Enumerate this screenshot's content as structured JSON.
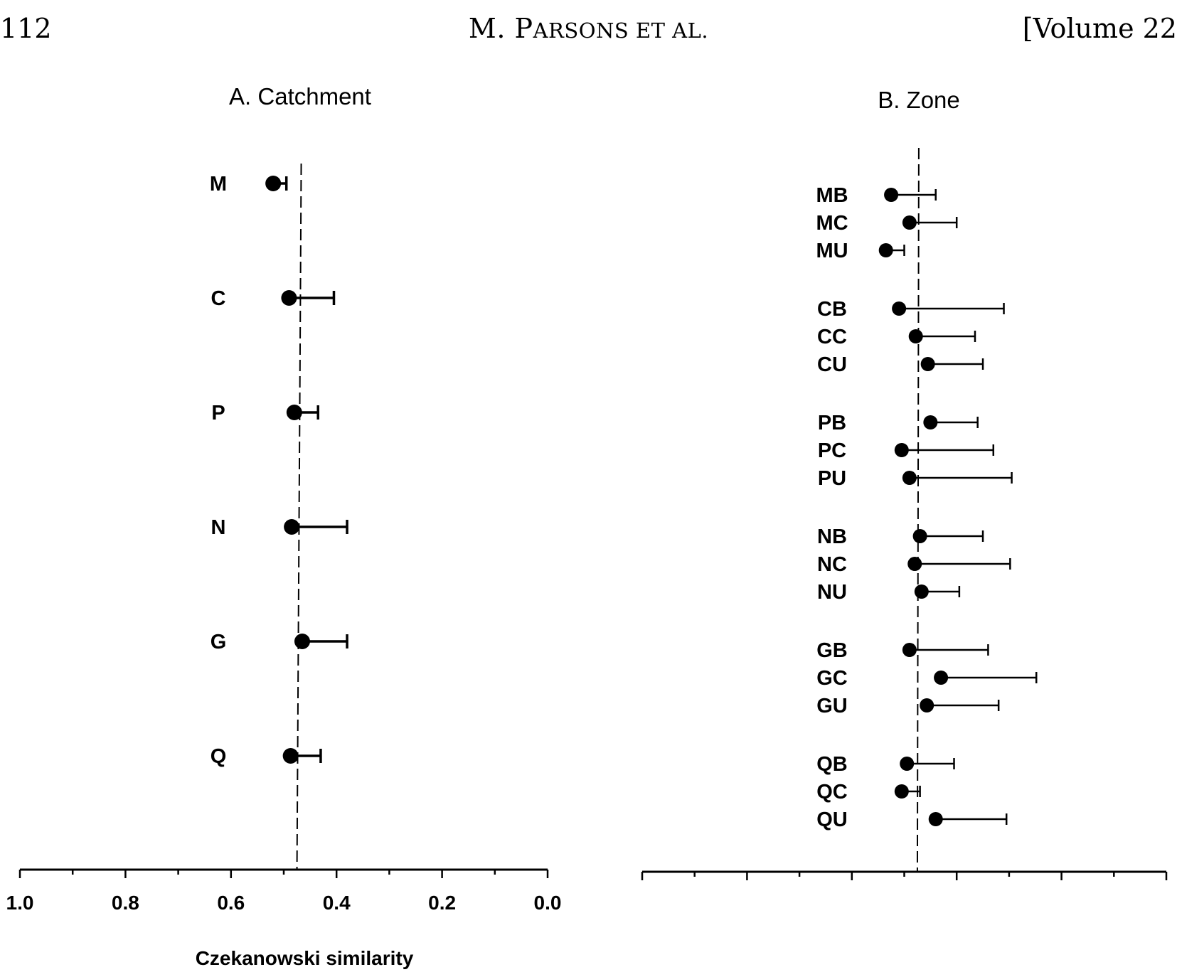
{
  "header": {
    "page_number": "112",
    "author_initial": "M. P",
    "author_rest": "ARSONS ET AL.",
    "volume": "[Volume 22"
  },
  "chart_data": [
    {
      "type": "dot-errorbar",
      "title": "A. Catchment",
      "xlabel": "Czekanowski similarity",
      "xlim": [
        1.0,
        0.0
      ],
      "x_reversed": true,
      "xticks": [
        "1.0",
        "0.8",
        "0.6",
        "0.4",
        "0.2",
        "0.0"
      ],
      "reference_line": 0.475,
      "categories": [
        "M",
        "C",
        "P",
        "N",
        "G",
        "Q"
      ],
      "values": [
        0.52,
        0.49,
        0.48,
        0.485,
        0.465,
        0.487
      ],
      "error_to": [
        0.495,
        0.405,
        0.435,
        0.38,
        0.38,
        0.43
      ]
    },
    {
      "type": "dot-errorbar",
      "title": "B. Zone",
      "xlabel": "",
      "xlim": [
        1.0,
        0.0
      ],
      "x_reversed": true,
      "xticks": [
        "",
        "",
        "",
        "",
        "",
        ""
      ],
      "reference_line": 0.475,
      "groups": [
        {
          "categories": [
            "MB",
            "MC",
            "MU"
          ],
          "values": [
            0.525,
            0.49,
            0.535
          ],
          "error_to": [
            0.44,
            0.4,
            0.5
          ]
        },
        {
          "categories": [
            "CB",
            "CC",
            "CU"
          ],
          "values": [
            0.51,
            0.478,
            0.455
          ],
          "error_to": [
            0.31,
            0.365,
            0.35
          ]
        },
        {
          "categories": [
            "PB",
            "PC",
            "PU"
          ],
          "values": [
            0.45,
            0.505,
            0.49
          ],
          "error_to": [
            0.36,
            0.33,
            0.295
          ]
        },
        {
          "categories": [
            "NB",
            "NC",
            "NU"
          ],
          "values": [
            0.47,
            0.48,
            0.467
          ],
          "error_to": [
            0.35,
            0.298,
            0.395
          ]
        },
        {
          "categories": [
            "GB",
            "GC",
            "GU"
          ],
          "values": [
            0.49,
            0.43,
            0.457
          ],
          "error_to": [
            0.34,
            0.248,
            0.32
          ]
        },
        {
          "categories": [
            "QB",
            "QC",
            "QU"
          ],
          "values": [
            0.495,
            0.505,
            0.44
          ],
          "error_to": [
            0.405,
            0.47,
            0.305
          ]
        }
      ]
    }
  ]
}
